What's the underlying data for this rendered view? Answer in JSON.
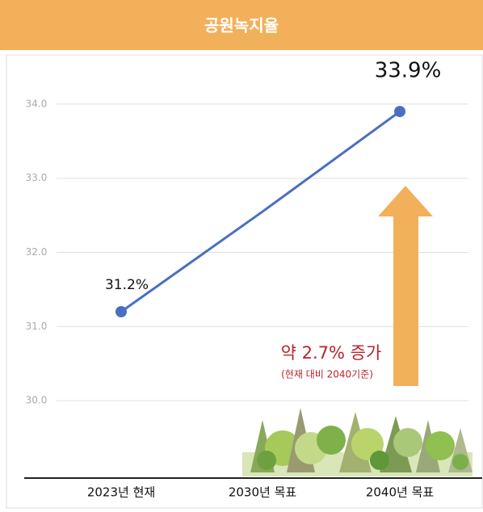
{
  "chart_data": {
    "type": "line",
    "title": "공원녹지율",
    "categories": [
      "2023년 현재",
      "2030년 목표",
      "2040년 목표"
    ],
    "series": [
      {
        "name": "공원녹지율",
        "color": "#4a6fc1",
        "values": [
          31.2,
          32.55,
          33.9
        ],
        "value_labels": [
          "31.2%",
          null,
          "33.9%"
        ]
      }
    ],
    "ylim": [
      29,
      34.5
    ],
    "yticks": [
      {
        "value": 30,
        "label": "30.0"
      },
      {
        "value": 31,
        "label": "31.0"
      },
      {
        "value": 32,
        "label": "32.0"
      },
      {
        "value": 33,
        "label": "33.0"
      },
      {
        "value": 34,
        "label": "34.0"
      }
    ],
    "grid": true,
    "annotations": [
      "약 2.7% 증가",
      "(현재 대비 2040기준)"
    ]
  }
}
